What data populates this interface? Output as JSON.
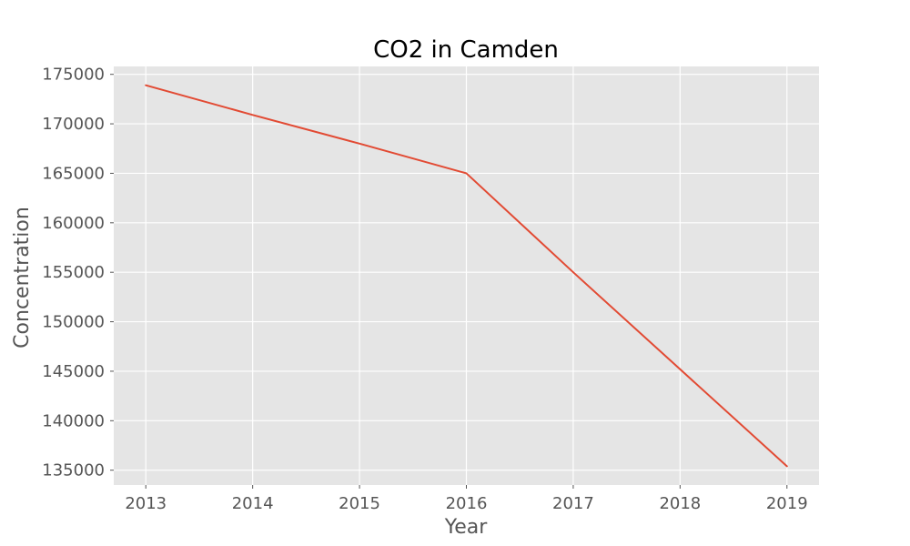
{
  "chart_data": {
    "type": "line",
    "title": "CO2 in Camden",
    "xlabel": "Year",
    "ylabel": "Concentration",
    "x": [
      2013,
      2014,
      2015,
      2016,
      2017,
      2018,
      2019
    ],
    "series": [
      {
        "values": [
          173900,
          170900,
          168000,
          165000,
          155000,
          145200,
          135400
        ]
      }
    ],
    "xlim": [
      2012.7,
      2019.3
    ],
    "ylim": [
      133500,
      175800
    ],
    "x_ticks": [
      "2013",
      "2014",
      "2015",
      "2016",
      "2017",
      "2018",
      "2019"
    ],
    "y_ticks": [
      "135000",
      "140000",
      "145000",
      "150000",
      "155000",
      "160000",
      "165000",
      "170000",
      "175000"
    ],
    "grid": true,
    "colors": {
      "line": "#e24a33",
      "plot_background": "#e5e5e5",
      "grid": "#ffffff",
      "text": "#555555"
    }
  }
}
